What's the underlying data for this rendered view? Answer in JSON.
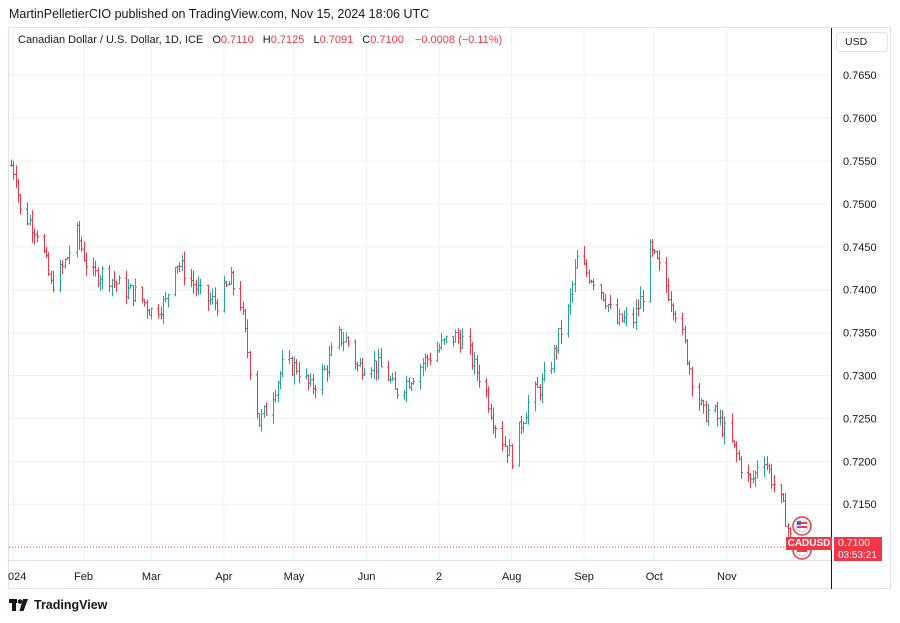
{
  "header": {
    "publisher_text": "MartinPelletierCIO published on TradingView.com, Nov 15, 2024 18:06 UTC"
  },
  "legend": {
    "title": "Canadian Dollar / U.S. Dollar, 1D, ICE",
    "open_label": "O",
    "open_value": "0.7110",
    "high_label": "H",
    "high_value": "0.7125",
    "low_label": "L",
    "low_value": "0.7091",
    "close_label": "C",
    "close_value": "0.7100",
    "change": "−0.0008 (−0.11%)"
  },
  "currency_button": "USD",
  "last_price": {
    "symbol": "CADUSD",
    "price": "0.7100",
    "countdown": "03:53:21"
  },
  "footer": {
    "brand": "TradingView"
  },
  "colors": {
    "up": "#26a69a",
    "down": "#f23645",
    "grid": "#eef1f6",
    "axis": "#131722"
  },
  "chart_data": {
    "type": "ohlc",
    "title": "Canadian Dollar / U.S. Dollar, 1D, ICE",
    "y_axis": {
      "min": 0.7085,
      "max": 0.7705,
      "ticks": [
        "0.7650",
        "0.7600",
        "0.7550",
        "0.7500",
        "0.7450",
        "0.7400",
        "0.7350",
        "0.7300",
        "0.7250",
        "0.7200",
        "0.7150"
      ],
      "side": "right"
    },
    "x_axis": {
      "ticks": [
        {
          "label": "024",
          "day": 1
        },
        {
          "label": "Feb",
          "day": 31
        },
        {
          "label": "Mar",
          "day": 60
        },
        {
          "label": "Apr",
          "day": 91
        },
        {
          "label": "May",
          "day": 121
        },
        {
          "label": "Jun",
          "day": 152
        },
        {
          "label": "2",
          "day": 183
        },
        {
          "label": "Aug",
          "day": 214
        },
        {
          "label": "Sep",
          "day": 245
        },
        {
          "label": "Oct",
          "day": 275
        },
        {
          "label": "Nov",
          "day": 306
        }
      ],
      "day_range": [
        0,
        336
      ]
    },
    "grid": true,
    "last_price_line": 0.71,
    "anchors": [
      [
        0,
        0.7545
      ],
      [
        2,
        0.7535
      ],
      [
        4,
        0.749
      ],
      [
        8,
        0.748
      ],
      [
        12,
        0.7465
      ],
      [
        17,
        0.7405
      ],
      [
        22,
        0.7425
      ],
      [
        28,
        0.7465
      ],
      [
        34,
        0.7415
      ],
      [
        40,
        0.742
      ],
      [
        44,
        0.741
      ],
      [
        48,
        0.74
      ],
      [
        54,
        0.7395
      ],
      [
        60,
        0.7375
      ],
      [
        66,
        0.7385
      ],
      [
        70,
        0.7435
      ],
      [
        76,
        0.7415
      ],
      [
        82,
        0.739
      ],
      [
        88,
        0.7385
      ],
      [
        94,
        0.741
      ],
      [
        98,
        0.7385
      ],
      [
        102,
        0.731
      ],
      [
        106,
        0.7245
      ],
      [
        110,
        0.7265
      ],
      [
        116,
        0.731
      ],
      [
        122,
        0.731
      ],
      [
        128,
        0.7285
      ],
      [
        134,
        0.7305
      ],
      [
        140,
        0.7345
      ],
      [
        144,
        0.734
      ],
      [
        148,
        0.731
      ],
      [
        154,
        0.7315
      ],
      [
        160,
        0.7305
      ],
      [
        164,
        0.728
      ],
      [
        170,
        0.7295
      ],
      [
        176,
        0.7315
      ],
      [
        180,
        0.7325
      ],
      [
        186,
        0.734
      ],
      [
        190,
        0.7345
      ],
      [
        194,
        0.734
      ],
      [
        198,
        0.731
      ],
      [
        202,
        0.729
      ],
      [
        206,
        0.725
      ],
      [
        210,
        0.7225
      ],
      [
        214,
        0.7205
      ],
      [
        218,
        0.7245
      ],
      [
        222,
        0.7275
      ],
      [
        226,
        0.7285
      ],
      [
        230,
        0.7305
      ],
      [
        234,
        0.7345
      ],
      [
        238,
        0.7375
      ],
      [
        242,
        0.7435
      ],
      [
        246,
        0.742
      ],
      [
        250,
        0.741
      ],
      [
        254,
        0.739
      ],
      [
        258,
        0.736
      ],
      [
        262,
        0.7365
      ],
      [
        266,
        0.7365
      ],
      [
        270,
        0.7395
      ],
      [
        273,
        0.7445
      ],
      [
        276,
        0.743
      ],
      [
        280,
        0.7405
      ],
      [
        284,
        0.7375
      ],
      [
        288,
        0.7335
      ],
      [
        292,
        0.7285
      ],
      [
        296,
        0.7255
      ],
      [
        300,
        0.726
      ],
      [
        304,
        0.724
      ],
      [
        308,
        0.722
      ],
      [
        312,
        0.7195
      ],
      [
        316,
        0.7175
      ],
      [
        318,
        0.7185
      ],
      [
        320,
        0.721
      ],
      [
        322,
        0.7205
      ],
      [
        325,
        0.718
      ],
      [
        328,
        0.716
      ],
      [
        331,
        0.7135
      ],
      [
        333,
        0.711
      ]
    ]
  }
}
